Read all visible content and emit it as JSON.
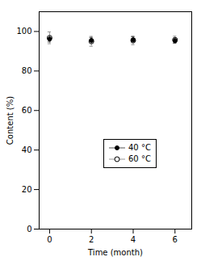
{
  "chart_data": {
    "type": "scatter",
    "xlabel": "Time (month)",
    "ylabel": "Content (%)",
    "x": [
      0,
      2,
      4,
      6
    ],
    "xlim": [
      -0.5,
      6.8
    ],
    "ylim": [
      0,
      110
    ],
    "xticks": [
      0,
      2,
      4,
      6
    ],
    "yticks": [
      0,
      20,
      40,
      60,
      80,
      100
    ],
    "grid": false,
    "legend": "bottom",
    "series": [
      {
        "name": "40 °C",
        "color": "#555555",
        "marker": "circle",
        "values": [
          96.2,
          95.5,
          95.8,
          95.3
        ],
        "errors": [
          1.5,
          1.5,
          1.5,
          1.2
        ]
      },
      {
        "name": "60 °C",
        "color": "#999999",
        "marker": "open-circle",
        "values": [
          96.8,
          95.0,
          95.5,
          95.8
        ],
        "errors": [
          3.0,
          2.5,
          2.2,
          1.8
        ]
      }
    ]
  }
}
